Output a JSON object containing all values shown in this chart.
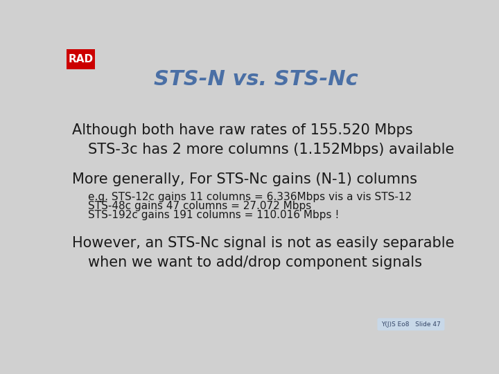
{
  "title": "STS-N vs. STS-Nc",
  "title_color": "#4a6fa5",
  "title_fontsize": 22,
  "background_color": "#d0d0d0",
  "logo_red": "#cc0000",
  "logo_text": "RAD",
  "footer_text": "Y(J)S Eo8   Slide 47",
  "footer_bg": "#c8d8e8",
  "bullet1": "Although both have raw rates of 155.520 Mbps",
  "bullet1_indent": "STS-3c has 2 more columns (1.152Mbps) available",
  "bullet2": "More generally, For STS-Nc gains (N-1) columns",
  "sub1": "e.g. STS-12c gains 11 columns = 6.336Mbps vis a vis STS-12",
  "sub2": "STS-48c gains 47 columns = 27.072 Mbps",
  "sub3": "STS-192c gains 191 columns = 110.016 Mbps !",
  "bullet3": "However, an STS-Nc signal is not as easily separable",
  "bullet3_indent": "when we want to add/drop component signals",
  "text_color": "#1a1a1a",
  "bullet_fontsize": 15,
  "sub_fontsize": 11
}
